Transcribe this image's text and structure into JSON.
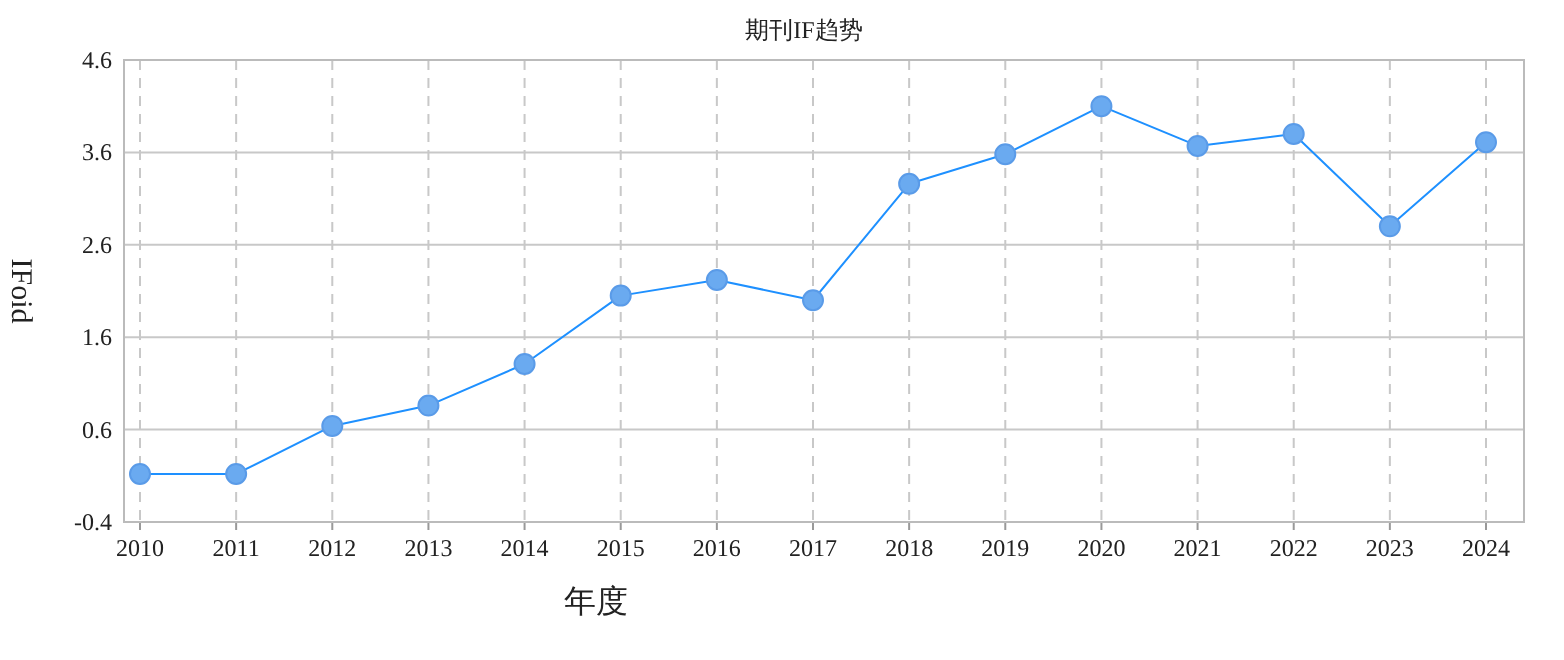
{
  "chart_data": {
    "type": "line",
    "title": "期刊IF趋势",
    "xlabel": "年度",
    "ylabel": "IFoid",
    "categories": [
      "2010",
      "2011",
      "2012",
      "2013",
      "2014",
      "2015",
      "2016",
      "2017",
      "2018",
      "2019",
      "2020",
      "2021",
      "2022",
      "2023",
      "2024"
    ],
    "series": [
      {
        "color": "#1e90ff",
        "values": [
          0.12,
          0.12,
          0.64,
          0.86,
          1.31,
          2.05,
          2.22,
          2.0,
          3.26,
          3.58,
          4.1,
          3.67,
          3.8,
          2.8,
          3.71
        ]
      }
    ],
    "ylim": [
      -0.4,
      4.6
    ],
    "yticks": [
      -0.4,
      0.6,
      1.6,
      2.6,
      3.6,
      4.6
    ],
    "grid": true,
    "marker": "circle",
    "line_style": "solid"
  }
}
